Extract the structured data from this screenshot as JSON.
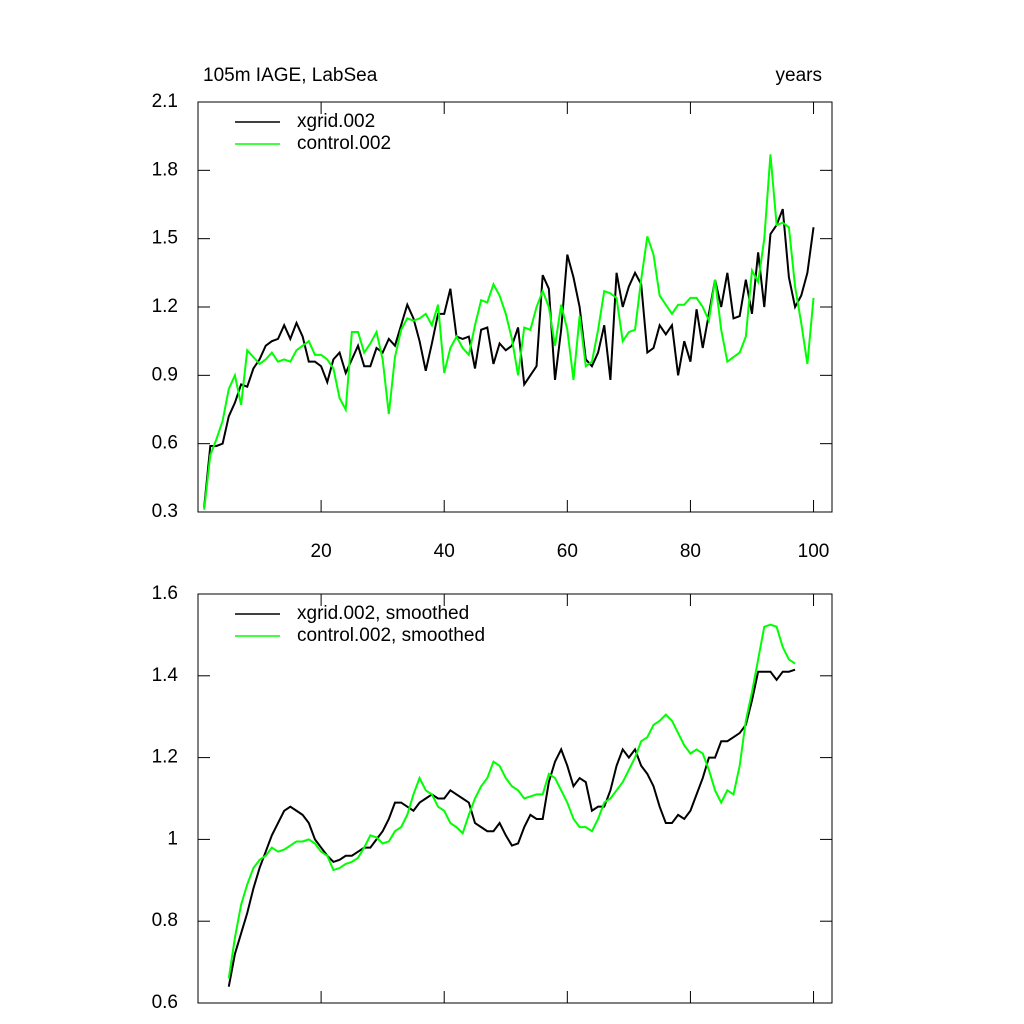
{
  "chart_data": [
    {
      "type": "line",
      "title": "105m IAGE, LabSea",
      "xlabel": "years",
      "x": [
        1,
        2,
        3,
        4,
        5,
        6,
        7,
        8,
        9,
        10,
        11,
        12,
        13,
        14,
        15,
        16,
        17,
        18,
        19,
        20,
        21,
        22,
        23,
        24,
        25,
        26,
        27,
        28,
        29,
        30,
        31,
        32,
        33,
        34,
        35,
        36,
        37,
        38,
        39,
        40,
        41,
        42,
        43,
        44,
        45,
        46,
        47,
        48,
        49,
        50,
        51,
        52,
        53,
        54,
        55,
        56,
        57,
        58,
        59,
        60,
        61,
        62,
        63,
        64,
        65,
        66,
        67,
        68,
        69,
        70,
        71,
        72,
        73,
        74,
        75,
        76,
        77,
        78,
        79,
        80,
        81,
        82,
        83,
        84,
        85,
        86,
        87,
        88,
        89,
        90,
        91,
        92,
        93,
        94,
        95,
        96,
        97,
        98,
        99,
        100
      ],
      "series": [
        {
          "name": "xgrid.002",
          "color": "#000000",
          "values": [
            0.32,
            0.59,
            0.59,
            0.6,
            0.72,
            0.78,
            0.86,
            0.85,
            0.93,
            0.97,
            1.03,
            1.05,
            1.06,
            1.12,
            1.06,
            1.13,
            1.07,
            0.96,
            0.96,
            0.94,
            0.87,
            0.97,
            1.0,
            0.91,
            0.97,
            1.03,
            0.94,
            0.94,
            1.02,
            1.0,
            1.06,
            1.03,
            1.12,
            1.21,
            1.15,
            1.05,
            0.92,
            1.04,
            1.17,
            1.17,
            1.28,
            1.07,
            1.06,
            1.07,
            0.93,
            1.1,
            1.11,
            0.95,
            1.04,
            1.01,
            1.03,
            1.11,
            0.86,
            0.9,
            0.94,
            1.34,
            1.28,
            0.88,
            1.1,
            1.43,
            1.33,
            1.2,
            0.97,
            0.94,
            1.0,
            1.12,
            0.88,
            1.35,
            1.2,
            1.29,
            1.35,
            1.3,
            1.0,
            1.02,
            1.12,
            1.08,
            1.12,
            0.9,
            1.05,
            0.96,
            1.19,
            1.02,
            1.17,
            1.32,
            1.2,
            1.35,
            1.15,
            1.16,
            1.32,
            1.17,
            1.44,
            1.2,
            1.52,
            1.56,
            1.63,
            1.33,
            1.2,
            1.25,
            1.35,
            1.55
          ]
        },
        {
          "name": "control.002",
          "color": "#00ff00",
          "values": [
            0.31,
            0.55,
            0.62,
            0.7,
            0.84,
            0.9,
            0.77,
            1.01,
            0.98,
            0.95,
            0.97,
            1.0,
            0.96,
            0.97,
            0.96,
            1.01,
            1.03,
            1.05,
            0.99,
            0.99,
            0.97,
            0.93,
            0.8,
            0.75,
            1.09,
            1.09,
            1.0,
            1.04,
            1.09,
            0.97,
            0.73,
            0.98,
            1.1,
            1.15,
            1.14,
            1.15,
            1.17,
            1.12,
            1.21,
            0.91,
            1.02,
            1.07,
            1.02,
            0.99,
            1.12,
            1.23,
            1.22,
            1.3,
            1.25,
            1.17,
            1.06,
            0.9,
            1.11,
            1.1,
            1.2,
            1.27,
            1.2,
            1.03,
            1.21,
            1.1,
            0.88,
            1.16,
            0.94,
            0.96,
            1.1,
            1.27,
            1.26,
            1.24,
            1.05,
            1.09,
            1.1,
            1.32,
            1.51,
            1.43,
            1.25,
            1.21,
            1.17,
            1.21,
            1.21,
            1.24,
            1.24,
            1.2,
            1.14,
            1.32,
            1.1,
            0.96,
            0.98,
            1.0,
            1.07,
            1.36,
            1.31,
            1.5,
            1.87,
            1.56,
            1.57,
            1.55,
            1.29,
            1.13,
            0.95,
            1.24
          ]
        }
      ],
      "xlim": [
        0,
        103
      ],
      "xticks": [
        20,
        40,
        60,
        80,
        100
      ],
      "ylim": [
        0.3,
        2.1
      ],
      "yticks": [
        0.3,
        0.6,
        0.9,
        1.2,
        1.5,
        1.8,
        2.1
      ],
      "legend": "upper left"
    },
    {
      "type": "line",
      "x": [
        5,
        6,
        7,
        8,
        9,
        10,
        11,
        12,
        13,
        14,
        15,
        16,
        17,
        18,
        19,
        20,
        21,
        22,
        23,
        24,
        25,
        26,
        27,
        28,
        29,
        30,
        31,
        32,
        33,
        34,
        35,
        36,
        37,
        38,
        39,
        40,
        41,
        42,
        43,
        44,
        45,
        46,
        47,
        48,
        49,
        50,
        51,
        52,
        53,
        54,
        55,
        56,
        57,
        58,
        59,
        60,
        61,
        62,
        63,
        64,
        65,
        66,
        67,
        68,
        69,
        70,
        71,
        72,
        73,
        74,
        75,
        76,
        77,
        78,
        79,
        80,
        81,
        82,
        83,
        84,
        85,
        86,
        87,
        88,
        89,
        90,
        91,
        92,
        93,
        94,
        95,
        96,
        97
      ],
      "series": [
        {
          "name": "xgrid.002, smoothed",
          "color": "#000000",
          "values": [
            0.64,
            0.72,
            0.77,
            0.82,
            0.88,
            0.93,
            0.97,
            1.01,
            1.04,
            1.07,
            1.08,
            1.07,
            1.06,
            1.04,
            1.0,
            0.98,
            0.96,
            0.945,
            0.95,
            0.96,
            0.96,
            0.97,
            0.98,
            0.98,
            1.0,
            1.02,
            1.05,
            1.09,
            1.09,
            1.08,
            1.07,
            1.09,
            1.1,
            1.11,
            1.1,
            1.1,
            1.12,
            1.11,
            1.1,
            1.09,
            1.04,
            1.03,
            1.02,
            1.02,
            1.04,
            1.01,
            0.985,
            0.99,
            1.03,
            1.06,
            1.05,
            1.05,
            1.14,
            1.19,
            1.22,
            1.18,
            1.13,
            1.15,
            1.14,
            1.07,
            1.08,
            1.08,
            1.12,
            1.18,
            1.22,
            1.2,
            1.22,
            1.18,
            1.16,
            1.13,
            1.08,
            1.04,
            1.04,
            1.06,
            1.05,
            1.07,
            1.11,
            1.15,
            1.2,
            1.2,
            1.24,
            1.24,
            1.25,
            1.26,
            1.28,
            1.34,
            1.41,
            1.41,
            1.41,
            1.39,
            1.41,
            1.41,
            1.415
          ]
        },
        {
          "name": "control.002, smoothed",
          "color": "#00ff00",
          "values": [
            0.66,
            0.76,
            0.84,
            0.89,
            0.93,
            0.95,
            0.96,
            0.98,
            0.97,
            0.975,
            0.985,
            0.995,
            0.995,
            1.0,
            0.99,
            0.97,
            0.96,
            0.925,
            0.93,
            0.94,
            0.945,
            0.955,
            0.98,
            1.01,
            1.005,
            0.99,
            0.995,
            1.02,
            1.03,
            1.06,
            1.11,
            1.15,
            1.12,
            1.11,
            1.08,
            1.07,
            1.04,
            1.03,
            1.015,
            1.06,
            1.1,
            1.13,
            1.15,
            1.19,
            1.18,
            1.15,
            1.13,
            1.12,
            1.1,
            1.105,
            1.11,
            1.11,
            1.16,
            1.15,
            1.12,
            1.09,
            1.05,
            1.03,
            1.03,
            1.02,
            1.05,
            1.09,
            1.1,
            1.12,
            1.14,
            1.17,
            1.2,
            1.24,
            1.25,
            1.28,
            1.29,
            1.305,
            1.29,
            1.26,
            1.23,
            1.21,
            1.22,
            1.21,
            1.17,
            1.12,
            1.09,
            1.12,
            1.11,
            1.18,
            1.29,
            1.36,
            1.44,
            1.52,
            1.525,
            1.52,
            1.47,
            1.44,
            1.43
          ]
        }
      ],
      "xlim": [
        0,
        103
      ],
      "xticks": [
        20,
        40,
        60,
        80,
        100
      ],
      "xtick_labels": false,
      "ylim": [
        0.6,
        1.6
      ],
      "yticks": [
        0.6,
        0.8,
        1.0,
        1.2,
        1.4,
        1.6
      ],
      "legend": "upper left"
    }
  ]
}
